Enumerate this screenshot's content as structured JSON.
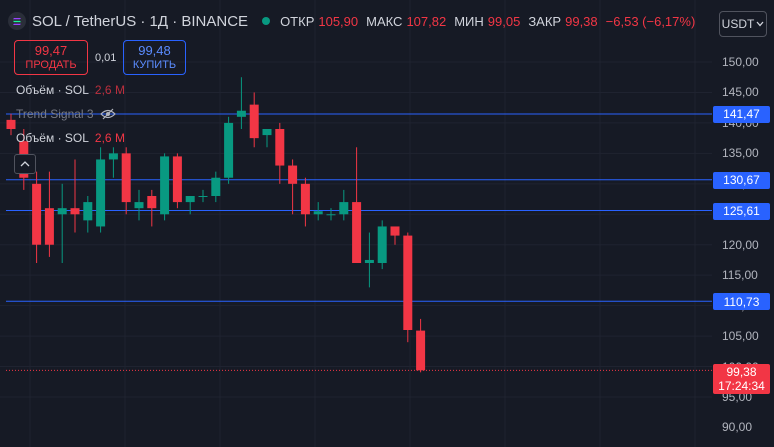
{
  "header": {
    "title": "SOL / TetherUS · 1Д · BINANCE",
    "ohlc": [
      {
        "label": "ОТКР",
        "value": "105,90"
      },
      {
        "label": "МАКС",
        "value": "107,82"
      },
      {
        "label": "МИН",
        "value": "99,05"
      },
      {
        "label": "ЗАКР",
        "value": "99,38"
      }
    ],
    "change": "−6,53 (−6,17%)",
    "currency": "USDT"
  },
  "trade": {
    "sell_price": "99,47",
    "sell_label": "ПРОДАТЬ",
    "spread": "0,01",
    "buy_price": "99,48",
    "buy_label": "КУПИТЬ"
  },
  "indicators": [
    {
      "name": "Объём · SOL",
      "value": "2,6 M"
    },
    {
      "name": "Trend Signal 3",
      "value": ""
    },
    {
      "name": "Объём · SOL",
      "value": "2,6 M"
    }
  ],
  "colors": {
    "up": "#089981",
    "down": "#f23645",
    "line": "#2962ff",
    "background": "#161a25"
  },
  "chart_data": {
    "type": "candlestick",
    "ylim": [
      87.5,
      153.5
    ],
    "y_ticks": [
      95,
      100,
      105,
      110,
      115,
      120,
      125,
      130,
      135,
      140,
      145,
      150
    ],
    "y_tick_labels": [
      "95,00",
      "100,00",
      "105,00",
      "110,00",
      "115,00",
      "120,00",
      "125,00",
      "130,00",
      "135,00",
      "140,00",
      "145,00",
      "150,00"
    ],
    "extra_tick_labels": [
      {
        "value": 90,
        "label": "90,00"
      }
    ],
    "candles": [
      {
        "o": 140.5,
        "h": 141.5,
        "l": 138.0,
        "c": 139.0
      },
      {
        "o": 137.0,
        "h": 139.0,
        "l": 129.0,
        "c": 131.0
      },
      {
        "o": 130.0,
        "h": 132.0,
        "l": 117.0,
        "c": 120.0
      },
      {
        "o": 126.0,
        "h": 132.0,
        "l": 118.0,
        "c": 120.0
      },
      {
        "o": 125.0,
        "h": 130.0,
        "l": 117.0,
        "c": 126.0
      },
      {
        "o": 126.0,
        "h": 134.0,
        "l": 122.0,
        "c": 125.0
      },
      {
        "o": 124.0,
        "h": 128.0,
        "l": 122.0,
        "c": 127.0
      },
      {
        "o": 123.0,
        "h": 136.0,
        "l": 122.0,
        "c": 134.0
      },
      {
        "o": 134.0,
        "h": 136.0,
        "l": 131.0,
        "c": 135.0
      },
      {
        "o": 135.0,
        "h": 136.0,
        "l": 125.0,
        "c": 127.0
      },
      {
        "o": 126.0,
        "h": 129.0,
        "l": 124.0,
        "c": 127.0
      },
      {
        "o": 128.0,
        "h": 129.0,
        "l": 123.0,
        "c": 126.0
      },
      {
        "o": 125.0,
        "h": 135.0,
        "l": 124.0,
        "c": 134.5
      },
      {
        "o": 134.5,
        "h": 135.0,
        "l": 126.0,
        "c": 127.0
      },
      {
        "o": 127.0,
        "h": 128.0,
        "l": 125.0,
        "c": 128.0
      },
      {
        "o": 128.0,
        "h": 129.0,
        "l": 127.0,
        "c": 128.0
      },
      {
        "o": 128.0,
        "h": 132.0,
        "l": 127.0,
        "c": 131.0
      },
      {
        "o": 131.0,
        "h": 141.0,
        "l": 130.0,
        "c": 140.0
      },
      {
        "o": 141.0,
        "h": 147.5,
        "l": 139.0,
        "c": 142.0
      },
      {
        "o": 143.0,
        "h": 145.0,
        "l": 136.0,
        "c": 137.5
      },
      {
        "o": 138.0,
        "h": 139.0,
        "l": 136.0,
        "c": 139.0
      },
      {
        "o": 139.0,
        "h": 140.0,
        "l": 130.0,
        "c": 133.0
      },
      {
        "o": 133.0,
        "h": 134.0,
        "l": 125.0,
        "c": 130.0
      },
      {
        "o": 130.0,
        "h": 131.0,
        "l": 123.0,
        "c": 125.0
      },
      {
        "o": 125.0,
        "h": 127.0,
        "l": 124.0,
        "c": 125.5
      },
      {
        "o": 125.0,
        "h": 126.0,
        "l": 124.0,
        "c": 125.0
      },
      {
        "o": 125.0,
        "h": 129.0,
        "l": 124.0,
        "c": 127.0
      },
      {
        "o": 127.0,
        "h": 136.0,
        "l": 117.0,
        "c": 117.0
      },
      {
        "o": 117.0,
        "h": 122.0,
        "l": 113.0,
        "c": 117.5
      },
      {
        "o": 117.0,
        "h": 124.0,
        "l": 116.0,
        "c": 123.0
      },
      {
        "o": 123.0,
        "h": 123.0,
        "l": 120.0,
        "c": 121.5
      },
      {
        "o": 121.5,
        "h": 122.0,
        "l": 104.0,
        "c": 106.0
      },
      {
        "o": 105.9,
        "h": 107.82,
        "l": 99.05,
        "c": 99.38
      }
    ],
    "lines": [
      {
        "value": 141.47,
        "label": "141,47"
      },
      {
        "value": 130.67,
        "label": "130,67"
      },
      {
        "value": 125.61,
        "label": "125,61"
      },
      {
        "value": 110.73,
        "label": "110,73"
      }
    ],
    "last_price": {
      "value": 99.38,
      "label": "99,38",
      "countdown": "17:24:34"
    }
  }
}
